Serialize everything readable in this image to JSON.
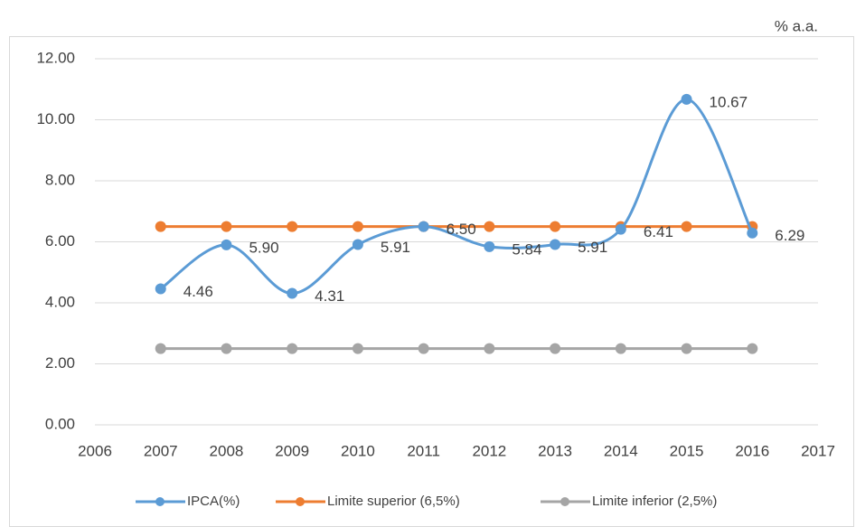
{
  "chart_data": {
    "type": "line",
    "unit_label": "% a.a.",
    "x": [
      2007,
      2008,
      2009,
      2010,
      2011,
      2012,
      2013,
      2014,
      2015,
      2016
    ],
    "series": [
      {
        "name": "IPCA(%)",
        "color": "#5b9bd5",
        "smooth": true,
        "values": [
          4.46,
          5.9,
          4.31,
          5.91,
          6.5,
          5.84,
          5.91,
          6.41,
          10.67,
          6.29
        ],
        "value_labels": [
          "4.46",
          "5.90",
          "4.31",
          "5.91",
          "6.50",
          "5.84",
          "5.91",
          "6.41",
          "10.67",
          "6.29"
        ]
      },
      {
        "name": "Limite superior (6,5%)",
        "color": "#ed7d31",
        "values": [
          6.5,
          6.5,
          6.5,
          6.5,
          6.5,
          6.5,
          6.5,
          6.5,
          6.5,
          6.5
        ]
      },
      {
        "name": "Limite inferior (2,5%)",
        "color": "#a5a5a5",
        "values": [
          2.5,
          2.5,
          2.5,
          2.5,
          2.5,
          2.5,
          2.5,
          2.5,
          2.5,
          2.5
        ]
      }
    ],
    "xlim": [
      2006,
      2017
    ],
    "xticks": [
      2006,
      2007,
      2008,
      2009,
      2010,
      2011,
      2012,
      2013,
      2014,
      2015,
      2016,
      2017
    ],
    "ylim": [
      0,
      12
    ],
    "yticks": [
      {
        "value": 0,
        "label": "0.00"
      },
      {
        "value": 2,
        "label": "2.00"
      },
      {
        "value": 4,
        "label": "4.00"
      },
      {
        "value": 6,
        "label": "6.00"
      },
      {
        "value": 8,
        "label": "8.00"
      },
      {
        "value": 10,
        "label": "10.00"
      },
      {
        "value": 12,
        "label": "12.00"
      }
    ],
    "grid": true,
    "legend": "bottom"
  }
}
